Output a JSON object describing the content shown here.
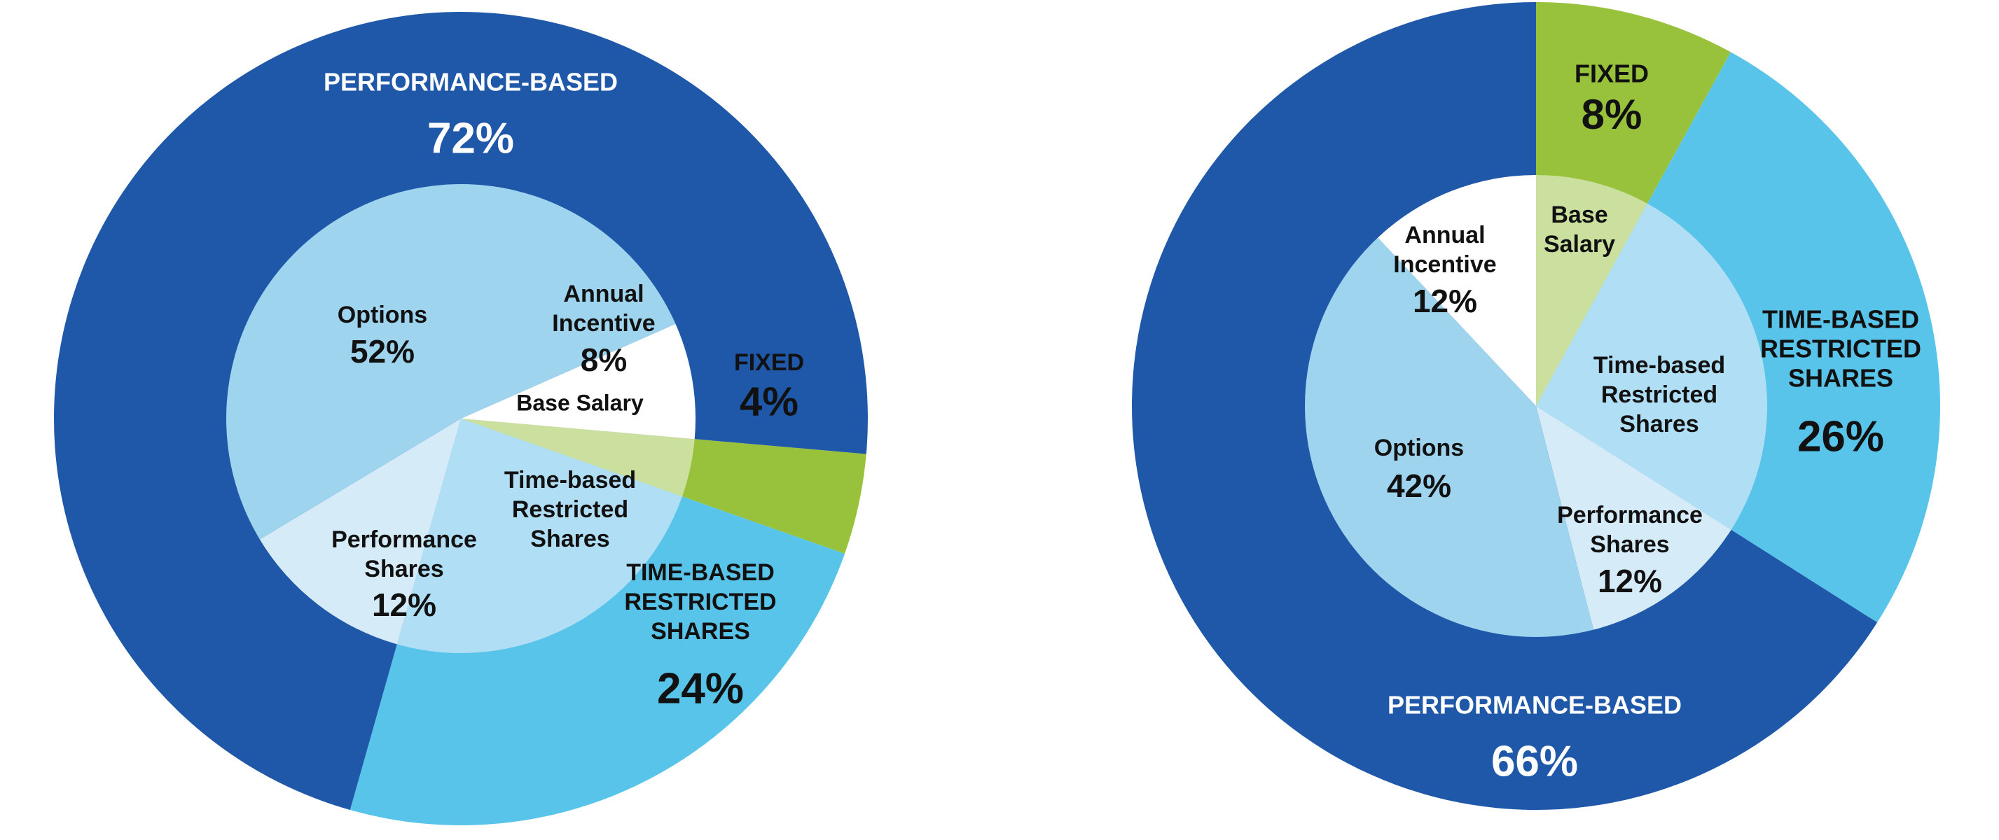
{
  "colors": {
    "performance_outer": "#1f58a8",
    "time_outer": "#59c4ea",
    "fixed_outer": "#99c23c",
    "options": "#9fd4ef",
    "performance_shares": "#d5ebf8",
    "time_shares_inner": "#b0def5",
    "base_salary": "#cbe09e",
    "annual_incentive": "#ffffff"
  },
  "chart_data": [
    {
      "type": "donut",
      "title": "",
      "outer": [
        {
          "key": "fixed",
          "name": "FIXED",
          "value": 4,
          "value_label": "4%"
        },
        {
          "key": "time",
          "name": "TIME-BASED RESTRICTED SHARES",
          "name_lines": [
            "TIME-BASED",
            "RESTRICTED",
            "SHARES"
          ],
          "value": 24,
          "value_label": "24%"
        },
        {
          "key": "performance",
          "name": "PERFORMANCE-BASED",
          "value": 72,
          "value_label": "72%"
        }
      ],
      "inner": [
        {
          "key": "base_salary",
          "name": "Base Salary",
          "name_lines": [
            "Base Salary"
          ],
          "value": 4,
          "value_label": ""
        },
        {
          "key": "time_shares_inner",
          "name": "Time-based Restricted Shares",
          "name_lines": [
            "Time-based",
            "Restricted",
            "Shares"
          ],
          "value": 24,
          "value_label": ""
        },
        {
          "key": "performance_shares",
          "name": "Performance Shares",
          "name_lines": [
            "Performance",
            "Shares"
          ],
          "value": 12,
          "value_label": "12%"
        },
        {
          "key": "options",
          "name": "Options",
          "name_lines": [
            "Options"
          ],
          "value": 52,
          "value_label": "52%"
        },
        {
          "key": "annual_incentive",
          "name": "Annual Incentive",
          "name_lines": [
            "Annual",
            "Incentive"
          ],
          "value": 8,
          "value_label": "8%"
        }
      ]
    },
    {
      "type": "donut",
      "title": "",
      "outer": [
        {
          "key": "fixed",
          "name": "FIXED",
          "value": 8,
          "value_label": "8%"
        },
        {
          "key": "time",
          "name": "TIME-BASED RESTRICTED SHARES",
          "name_lines": [
            "TIME-BASED",
            "RESTRICTED",
            "SHARES"
          ],
          "value": 26,
          "value_label": "26%"
        },
        {
          "key": "performance",
          "name": "PERFORMANCE-BASED",
          "value": 66,
          "value_label": "66%"
        }
      ],
      "inner": [
        {
          "key": "base_salary",
          "name": "Base Salary",
          "name_lines": [
            "Base",
            "Salary"
          ],
          "value": 8,
          "value_label": ""
        },
        {
          "key": "time_shares_inner",
          "name": "Time-based Restricted Shares",
          "name_lines": [
            "Time-based",
            "Restricted",
            "Shares"
          ],
          "value": 26,
          "value_label": ""
        },
        {
          "key": "performance_shares",
          "name": "Performance Shares",
          "name_lines": [
            "Performance",
            "Shares"
          ],
          "value": 12,
          "value_label": "12%"
        },
        {
          "key": "options",
          "name": "Options",
          "name_lines": [
            "Options"
          ],
          "value": 42,
          "value_label": "42%"
        },
        {
          "key": "annual_incentive",
          "name": "Annual Incentive",
          "name_lines": [
            "Annual",
            "Incentive"
          ],
          "value": 12,
          "value_label": "12%"
        }
      ]
    }
  ]
}
